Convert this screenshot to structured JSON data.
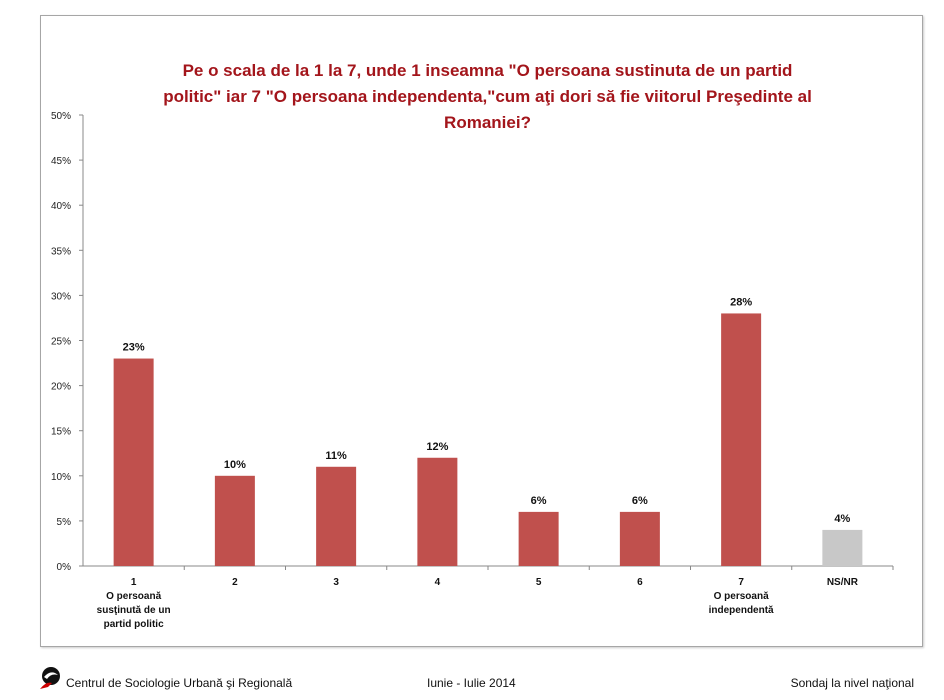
{
  "chart_data": {
    "type": "bar",
    "title": "Pe o scala de la 1 la 7, unde 1 inseamna \"O persoana sustinuta de un partid politic\" iar 7 \"O persoana independenta,\"cum aţi dori să fie viitorul Preşedinte al Romaniei?",
    "title_lines": [
      "Pe o scala de la 1 la 7, unde 1 inseamna \"O persoana sustinuta de un partid",
      "politic\" iar 7 \"O persoana independenta,\"cum aţi dori să fie viitorul Preşedinte al",
      "Romaniei?"
    ],
    "categories": [
      "1",
      "2",
      "3",
      "4",
      "5",
      "6",
      "7",
      "NS/NR"
    ],
    "category_sublabels": [
      [
        "O persoană",
        "susţinută de un",
        "partid politic"
      ],
      [],
      [],
      [],
      [],
      [],
      [
        "O persoană",
        "independentă"
      ],
      []
    ],
    "values": [
      23,
      10,
      11,
      12,
      6,
      6,
      28,
      4
    ],
    "data_labels": [
      "23%",
      "10%",
      "11%",
      "12%",
      "6%",
      "6%",
      "28%",
      "4%"
    ],
    "bar_colors": [
      "#c0504d",
      "#c0504d",
      "#c0504d",
      "#c0504d",
      "#c0504d",
      "#c0504d",
      "#c0504d",
      "#c8c8c8"
    ],
    "ylim": [
      0,
      50
    ],
    "yticks": [
      0,
      5,
      10,
      15,
      20,
      25,
      30,
      35,
      40,
      45,
      50
    ],
    "ytick_labels": [
      "0%",
      "5%",
      "10%",
      "15%",
      "20%",
      "25%",
      "30%",
      "35%",
      "40%",
      "45%",
      "50%"
    ],
    "xlabel": "",
    "ylabel": "",
    "grid": false,
    "legend": "none"
  },
  "footer": {
    "organization": "Centrul de Sociologie Urbană şi Regională",
    "period": "Iunie - Iulie 2014",
    "survey": "Sondaj la nivel naţional"
  },
  "colors": {
    "title": "#a3151b",
    "bar": "#c0504d",
    "nsnr": "#c8c8c8"
  }
}
